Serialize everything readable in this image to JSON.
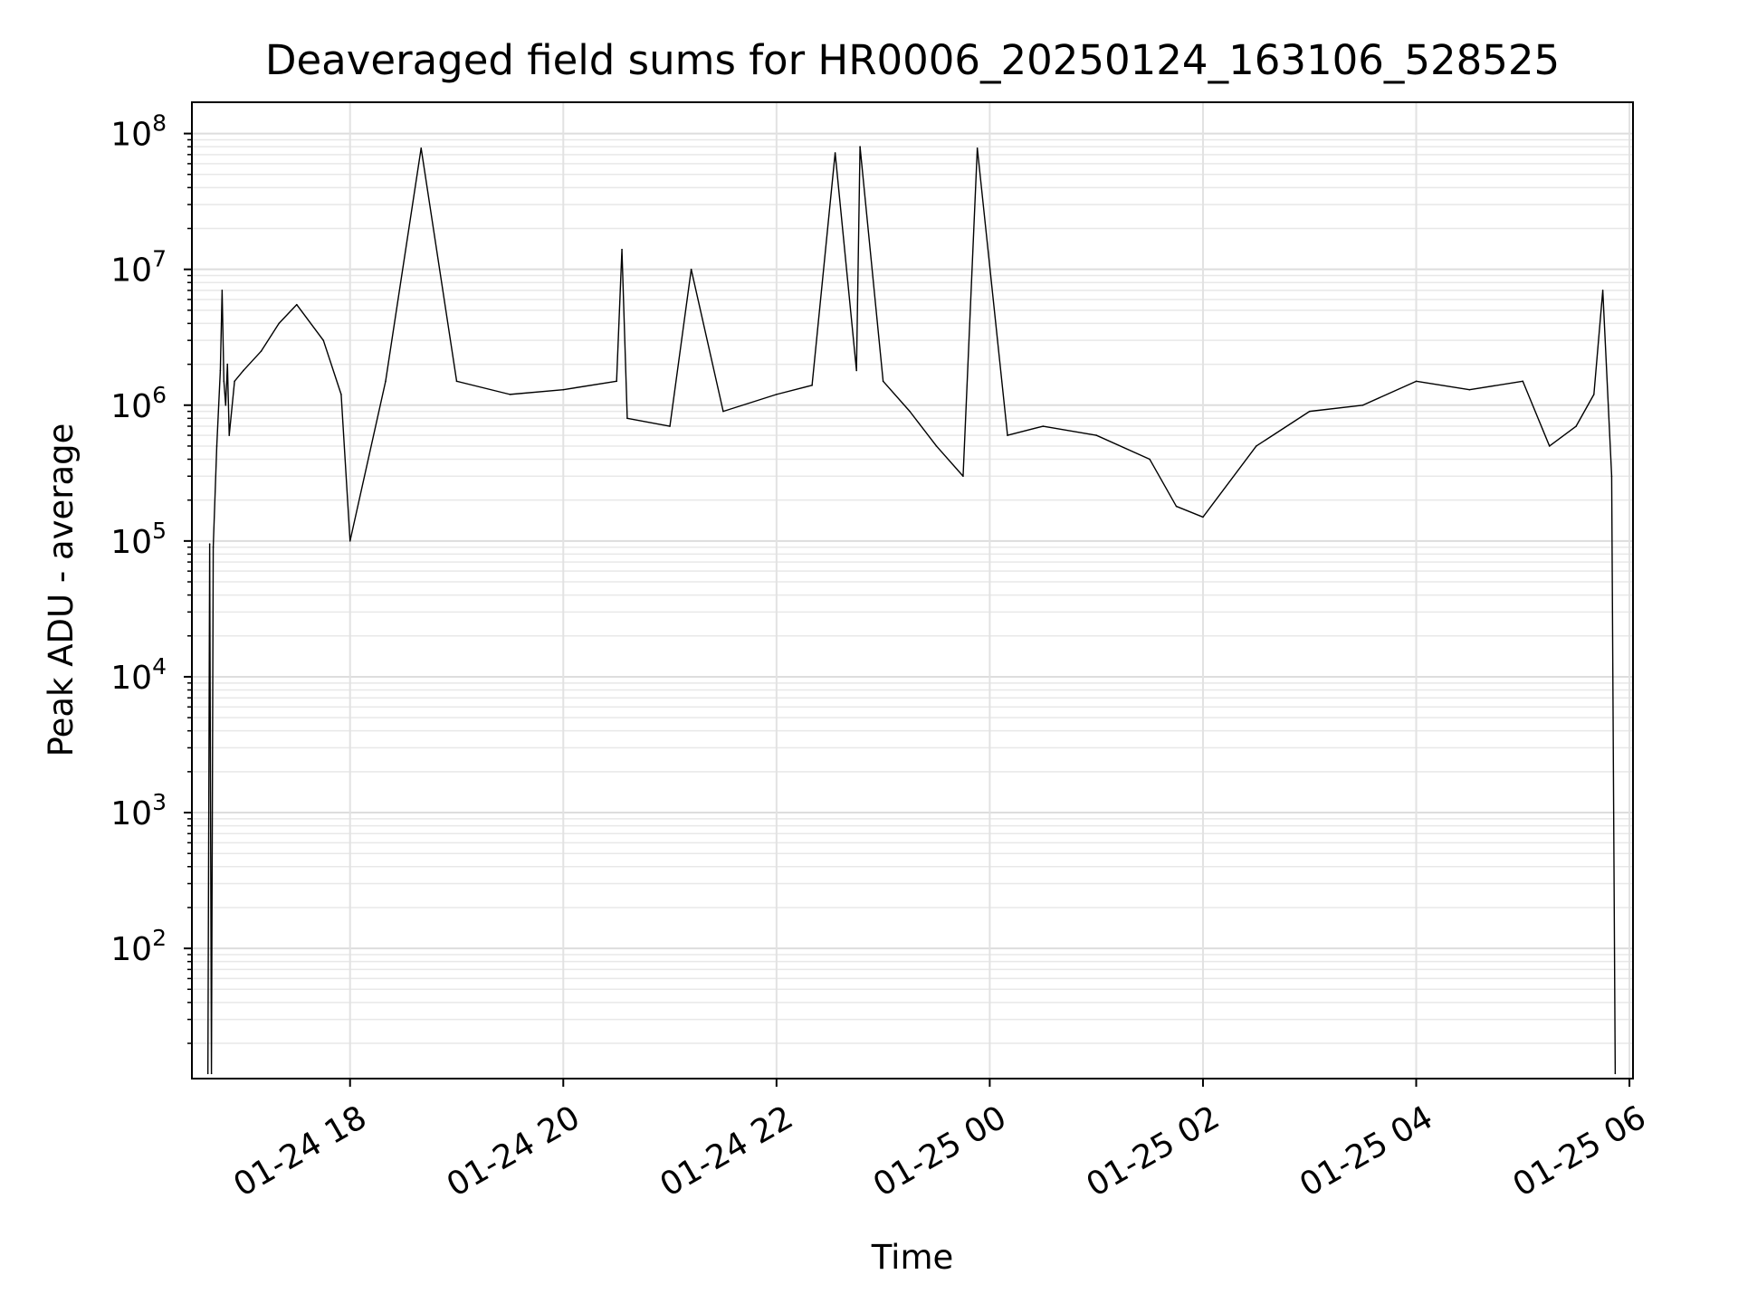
{
  "chart_data": {
    "type": "line",
    "title": "Deaveraged field sums for HR0006_20250124_163106_528525",
    "xlabel": "Time",
    "ylabel": "Peak ADU - average",
    "yscale": "log",
    "ylim": [
      11,
      170000000
    ],
    "xlim": [
      "2025-01-24 16:31",
      "2025-01-25 06:02"
    ],
    "grid": true,
    "line_color": "#000000",
    "x_ticks": [
      {
        "label": "01-24 18",
        "value": "2025-01-24 18:00"
      },
      {
        "label": "01-24 20",
        "value": "2025-01-24 20:00"
      },
      {
        "label": "01-24 22",
        "value": "2025-01-24 22:00"
      },
      {
        "label": "01-25 00",
        "value": "2025-01-25 00:00"
      },
      {
        "label": "01-25 02",
        "value": "2025-01-25 02:00"
      },
      {
        "label": "01-25 04",
        "value": "2025-01-25 04:00"
      },
      {
        "label": "01-25 06",
        "value": "2025-01-25 06:00"
      }
    ],
    "y_ticks": [
      {
        "base": "10",
        "exp": "2",
        "value": 100
      },
      {
        "base": "10",
        "exp": "3",
        "value": 1000
      },
      {
        "base": "10",
        "exp": "4",
        "value": 10000
      },
      {
        "base": "10",
        "exp": "5",
        "value": 100000
      },
      {
        "base": "10",
        "exp": "6",
        "value": 1000000
      },
      {
        "base": "10",
        "exp": "7",
        "value": 10000000
      },
      {
        "base": "10",
        "exp": "8",
        "value": 100000000
      }
    ],
    "series": [
      {
        "x": [
          "2025-01-24 16:40",
          "2025-01-24 16:41",
          "2025-01-24 16:42",
          "2025-01-24 16:43",
          "2025-01-24 16:45",
          "2025-01-24 16:47",
          "2025-01-24 16:48",
          "2025-01-24 16:49",
          "2025-01-24 16:50",
          "2025-01-24 16:51",
          "2025-01-24 16:52",
          "2025-01-24 16:55",
          "2025-01-24 17:00",
          "2025-01-24 17:10",
          "2025-01-24 17:20",
          "2025-01-24 17:30",
          "2025-01-24 17:45",
          "2025-01-24 17:55",
          "2025-01-24 18:00",
          "2025-01-24 18:20",
          "2025-01-24 18:40",
          "2025-01-24 19:00",
          "2025-01-24 19:30",
          "2025-01-24 20:00",
          "2025-01-24 20:30",
          "2025-01-24 20:33",
          "2025-01-24 20:36",
          "2025-01-24 21:00",
          "2025-01-24 21:12",
          "2025-01-24 21:30",
          "2025-01-24 22:00",
          "2025-01-24 22:20",
          "2025-01-24 22:33",
          "2025-01-24 22:45",
          "2025-01-24 22:47",
          "2025-01-24 23:00",
          "2025-01-24 23:15",
          "2025-01-24 23:30",
          "2025-01-24 23:45",
          "2025-01-24 23:53",
          "2025-01-25 00:10",
          "2025-01-25 00:30",
          "2025-01-25 01:00",
          "2025-01-25 01:30",
          "2025-01-25 01:45",
          "2025-01-25 02:00",
          "2025-01-25 02:30",
          "2025-01-25 03:00",
          "2025-01-25 03:30",
          "2025-01-25 04:00",
          "2025-01-25 04:30",
          "2025-01-25 05:00",
          "2025-01-25 05:15",
          "2025-01-25 05:30",
          "2025-01-25 05:40",
          "2025-01-25 05:45",
          "2025-01-25 05:50",
          "2025-01-25 05:52"
        ],
        "y": [
          12,
          95000,
          12,
          90000,
          500000,
          1800000,
          7000000,
          1500000,
          1000000,
          2000000,
          600000,
          1500000,
          1800000,
          2500000,
          4000000,
          5500000,
          3000000,
          1200000,
          100000,
          1500000,
          78000000,
          1500000,
          1200000,
          1300000,
          1500000,
          14000000,
          800000,
          700000,
          10000000,
          900000,
          1200000,
          1400000,
          72000000,
          1800000,
          80000000,
          1500000,
          900000,
          500000,
          300000,
          78000000,
          600000,
          700000,
          600000,
          400000,
          180000,
          150000,
          500000,
          900000,
          1000000,
          1500000,
          1300000,
          1500000,
          500000,
          700000,
          1200000,
          7000000,
          300000,
          12
        ]
      }
    ]
  }
}
